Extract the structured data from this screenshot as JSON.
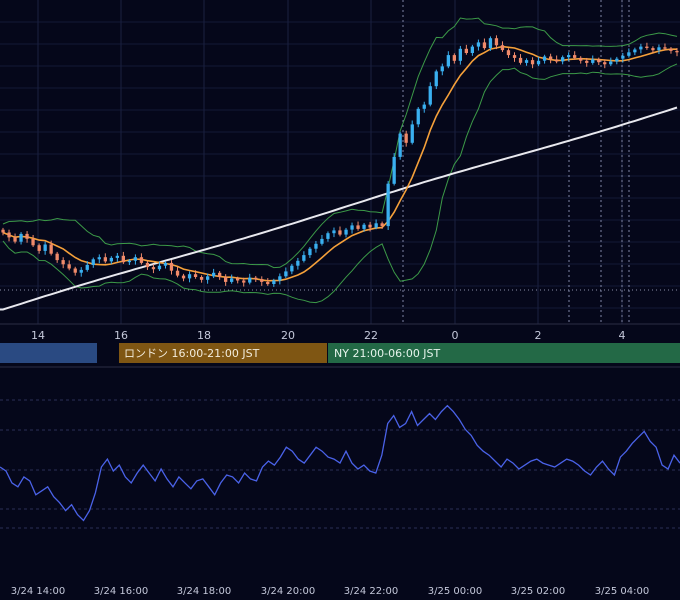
{
  "chart_data": [
    {
      "type": "candlestick",
      "panel": "price",
      "title": "",
      "x_hour_ticks": [
        "14",
        "16",
        "18",
        "20",
        "22",
        "0",
        "2",
        "4"
      ],
      "series": [
        {
          "kind": "candles",
          "x_start": "3/24 13:00",
          "bar_minutes": 15,
          "close": [
            52.1,
            51.4,
            50.8,
            51.9,
            51.2,
            50.3,
            49.5,
            50.4,
            49.1,
            48.2,
            47.6,
            47.0,
            46.4,
            46.8,
            47.5,
            48.3,
            48.6,
            48.0,
            48.5,
            48.8,
            47.9,
            48.1,
            48.6,
            47.8,
            47.2,
            46.9,
            47.4,
            47.8,
            46.7,
            46.0,
            45.6,
            46.2,
            45.8,
            45.4,
            45.9,
            46.4,
            45.8,
            45.1,
            45.6,
            45.3,
            45.0,
            45.7,
            45.5,
            45.1,
            44.8,
            45.3,
            45.9,
            46.6,
            47.4,
            48.1,
            48.9,
            49.8,
            50.5,
            51.2,
            52.0,
            52.4,
            51.8,
            52.5,
            53.1,
            52.6,
            53.2,
            52.8,
            53.4,
            53.0,
            59.0,
            62.8,
            66.1,
            64.8,
            67.4,
            69.6,
            70.2,
            72.8,
            74.9,
            75.6,
            77.2,
            76.4,
            78.1,
            77.5,
            78.4,
            79.0,
            78.2,
            79.6,
            78.6,
            77.9,
            77.2,
            76.8,
            76.1,
            76.5,
            75.9,
            76.4,
            77.0,
            76.6,
            76.3,
            76.9,
            77.2,
            76.8,
            76.4,
            76.1,
            76.6,
            76.2,
            75.9,
            76.3,
            76.7,
            77.1,
            77.6,
            78.0,
            78.4,
            78.2,
            77.9,
            78.3,
            78.1,
            77.8,
            77.6
          ],
          "up_color": "#3ab0f0",
          "down_color": "#f08a6a"
        },
        {
          "kind": "line",
          "name": "",
          "role": "moving average (short)",
          "color": "#f5a03a"
        },
        {
          "kind": "band",
          "name": "",
          "role": "bollinger band",
          "color": "#3c9a48"
        },
        {
          "kind": "line",
          "name": "",
          "role": "long moving average",
          "color": "#e8e8ee",
          "values_at_panel_edges": [
            41.2,
            69.8
          ]
        }
      ]
    },
    {
      "type": "line",
      "panel": "oscillator",
      "title": "",
      "series": [
        {
          "name": "",
          "color": "#4a62e8",
          "values": [
            52,
            50,
            44,
            42,
            47,
            45,
            38,
            40,
            42,
            37,
            34,
            30,
            33,
            28,
            25,
            30,
            39,
            52,
            56,
            50,
            53,
            47,
            44,
            49,
            53,
            49,
            45,
            51,
            46,
            42,
            47,
            44,
            41,
            45,
            46,
            42,
            38,
            44,
            48,
            47,
            44,
            49,
            46,
            45,
            52,
            55,
            53,
            57,
            62,
            60,
            56,
            54,
            58,
            62,
            60,
            57,
            56,
            54,
            60,
            54,
            51,
            53,
            50,
            49,
            58,
            74,
            78,
            72,
            74,
            80,
            73,
            76,
            79,
            76,
            80,
            83,
            80,
            76,
            71,
            68,
            63,
            60,
            58,
            55,
            52,
            56,
            54,
            51,
            53,
            55,
            56,
            54,
            53,
            52,
            54,
            56,
            55,
            53,
            50,
            48,
            52,
            55,
            51,
            48,
            57,
            60,
            64,
            67,
            70,
            65,
            62,
            53,
            51,
            58,
            54
          ]
        }
      ]
    }
  ],
  "sessions": [
    {
      "label": "",
      "color": "#2a4a82"
    },
    {
      "label": "ロンドン 16:00-21:00 JST",
      "color": "#7f5613"
    },
    {
      "label": "NY 21:00-06:00 JST",
      "color": "#236946"
    }
  ],
  "time_axis_labels": [
    "3/24 14:00",
    "3/24 16:00",
    "3/24 18:00",
    "3/24 20:00",
    "3/24 22:00",
    "3/25 00:00",
    "3/25 02:00",
    "3/25 04:00"
  ]
}
